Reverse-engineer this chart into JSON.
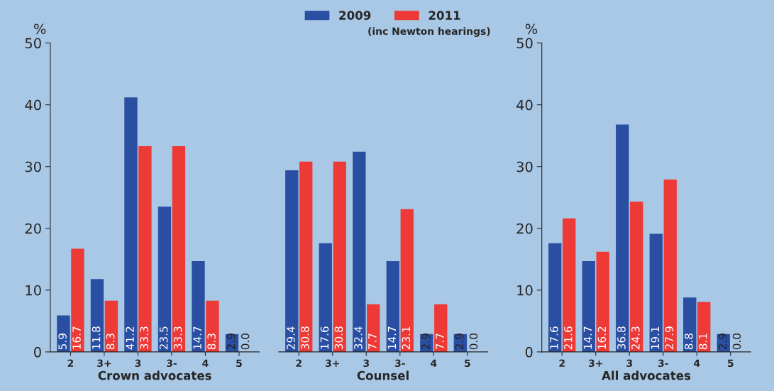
{
  "chart_data": [
    {
      "type": "bar",
      "xlabel": "Crown advocates",
      "ylabel": "%",
      "categories": [
        "2",
        "3+",
        "3",
        "3-",
        "4",
        "5"
      ],
      "series": [
        {
          "name": "2009",
          "color": "#2a4ea2",
          "values": [
            5.9,
            11.8,
            41.2,
            23.5,
            14.7,
            2.9
          ]
        },
        {
          "name": "2011",
          "color": "#ee3a37",
          "values": [
            16.7,
            8.3,
            33.3,
            33.3,
            8.3,
            0.0
          ],
          "value_labels": [
            "16.7",
            "8.3",
            "33.3",
            "33.3",
            "8.3",
            "0.0"
          ]
        }
      ],
      "ylim": [
        0,
        50
      ],
      "yticks": [
        0,
        10,
        20,
        30,
        40,
        50
      ],
      "data_labels": true,
      "grid": false,
      "legend": "top"
    },
    {
      "type": "bar",
      "xlabel": "Counsel",
      "categories": [
        "2",
        "3+",
        "3",
        "3-",
        "4",
        "5"
      ],
      "series": [
        {
          "name": "2009",
          "color": "#2a4ea2",
          "values": [
            29.4,
            17.6,
            32.4,
            14.7,
            2.9,
            2.9
          ]
        },
        {
          "name": "2011",
          "color": "#ee3a37",
          "values": [
            30.8,
            30.8,
            7.7,
            23.1,
            7.7,
            0.0
          ],
          "value_labels": [
            "30.8",
            "30.8",
            "7.7",
            "23.1",
            "7.7",
            "0.0"
          ]
        }
      ],
      "ylim": [
        0,
        50
      ],
      "yticks": [
        0,
        10,
        20,
        30,
        40,
        50
      ],
      "tick_labels": "x",
      "data_labels": true,
      "grid": false,
      "annotations": [
        "(inc Newton hearings)"
      ]
    },
    {
      "type": "bar",
      "xlabel": "All advocates",
      "ylabel": "%",
      "categories": [
        "2",
        "3+",
        "3",
        "3-",
        "4",
        "5"
      ],
      "series": [
        {
          "name": "2009",
          "color": "#2a4ea2",
          "values": [
            17.6,
            14.7,
            36.8,
            19.1,
            8.8,
            2.9
          ]
        },
        {
          "name": "2011",
          "color": "#ee3a37",
          "values": [
            21.6,
            16.2,
            24.3,
            27.9,
            8.1,
            0.0
          ],
          "value_labels": [
            "21.6",
            "16.2",
            "24.3",
            "27.9",
            "8.1",
            "0.0"
          ]
        }
      ],
      "ylim": [
        0,
        50
      ],
      "yticks": [
        0,
        10,
        20,
        30,
        40,
        50
      ],
      "data_labels": true,
      "grid": false
    }
  ]
}
